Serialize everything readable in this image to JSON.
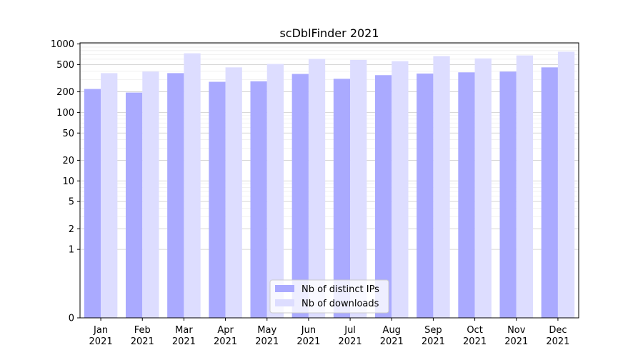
{
  "chart_data": {
    "type": "bar",
    "title": "scDblFinder 2021",
    "xlabel": "",
    "ylabel": "",
    "y_scale": "symlog",
    "ylim": [
      0,
      1000
    ],
    "y_ticks": [
      {
        "value": 0,
        "label": "0"
      },
      {
        "value": 1,
        "label": "1"
      },
      {
        "value": 2,
        "label": "2"
      },
      {
        "value": 5,
        "label": "5"
      },
      {
        "value": 10,
        "label": "10"
      },
      {
        "value": 20,
        "label": "20"
      },
      {
        "value": 50,
        "label": "50"
      },
      {
        "value": 100,
        "label": "100"
      },
      {
        "value": 200,
        "label": "200"
      },
      {
        "value": 500,
        "label": "500"
      },
      {
        "value": 1000,
        "label": "1000"
      }
    ],
    "categories": [
      {
        "month": "Jan",
        "year": "2021"
      },
      {
        "month": "Feb",
        "year": "2021"
      },
      {
        "month": "Mar",
        "year": "2021"
      },
      {
        "month": "Apr",
        "year": "2021"
      },
      {
        "month": "May",
        "year": "2021"
      },
      {
        "month": "Jun",
        "year": "2021"
      },
      {
        "month": "Jul",
        "year": "2021"
      },
      {
        "month": "Aug",
        "year": "2021"
      },
      {
        "month": "Sep",
        "year": "2021"
      },
      {
        "month": "Oct",
        "year": "2021"
      },
      {
        "month": "Nov",
        "year": "2021"
      },
      {
        "month": "Dec",
        "year": "2021"
      }
    ],
    "series": [
      {
        "name": "Nb of distinct IPs",
        "color": "#aaaaff",
        "values": [
          220,
          195,
          375,
          280,
          285,
          365,
          310,
          350,
          370,
          385,
          395,
          455
        ]
      },
      {
        "name": "Nb of downloads",
        "color": "#ddddff",
        "values": [
          375,
          395,
          730,
          455,
          510,
          605,
          585,
          560,
          665,
          615,
          680,
          770
        ]
      }
    ],
    "grid": true,
    "legend_position": "bottom-center"
  }
}
